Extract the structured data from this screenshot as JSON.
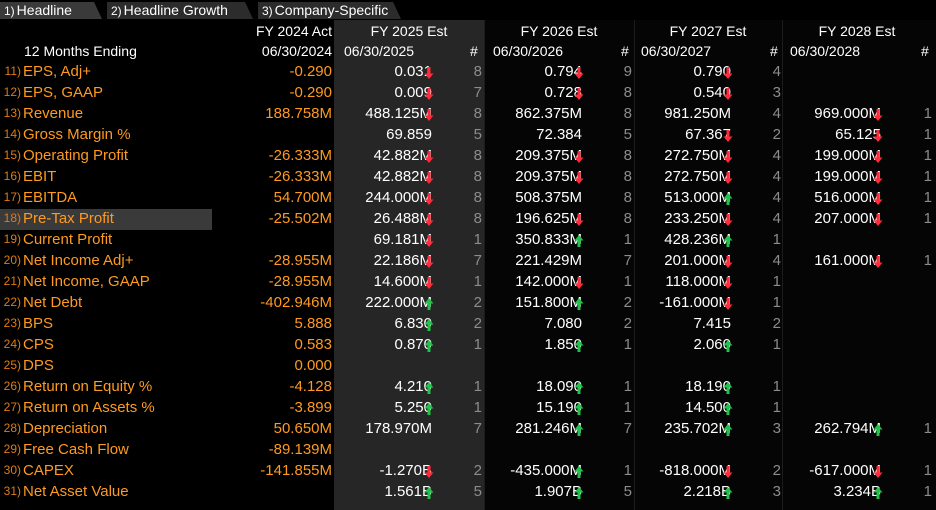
{
  "tabs": [
    {
      "num": "1)",
      "label": "Headline",
      "active": true
    },
    {
      "num": "2)",
      "label": "Headline Growth",
      "active": false
    },
    {
      "num": "3)",
      "label": "Company-Specific",
      "active": false
    }
  ],
  "header": {
    "period_label": "12 Months Ending",
    "count_symbol": "#",
    "columns": [
      {
        "title": "FY 2024 Act",
        "date": "06/30/2024"
      },
      {
        "title": "FY 2025 Est",
        "date": "06/30/2025"
      },
      {
        "title": "FY 2026 Est",
        "date": "06/30/2026"
      },
      {
        "title": "FY 2027 Est",
        "date": "06/30/2027"
      },
      {
        "title": "FY 2028 Est",
        "date": "06/30/2028"
      }
    ]
  },
  "colors": {
    "orange": "#ff9a1f",
    "up": "#22c24a",
    "down": "#ff2a3a",
    "count": "#8c8c8c"
  },
  "rows": [
    {
      "num": "11)",
      "label": "EPS, Adj+",
      "actual": "-0.290",
      "est": [
        {
          "v": "0.031",
          "d": "down",
          "n": "8"
        },
        {
          "v": "0.794",
          "d": "down",
          "n": "9"
        },
        {
          "v": "0.790",
          "d": "down",
          "n": "4"
        },
        {
          "v": "",
          "d": "",
          "n": ""
        }
      ]
    },
    {
      "num": "12)",
      "label": "EPS, GAAP",
      "actual": "-0.290",
      "est": [
        {
          "v": "0.009",
          "d": "down",
          "n": "7"
        },
        {
          "v": "0.728",
          "d": "down",
          "n": "8"
        },
        {
          "v": "0.540",
          "d": "down",
          "n": "3"
        },
        {
          "v": "",
          "d": "",
          "n": ""
        }
      ]
    },
    {
      "num": "13)",
      "label": "Revenue",
      "actual": "188.758M",
      "est": [
        {
          "v": "488.125M",
          "d": "down",
          "n": "8"
        },
        {
          "v": "862.375M",
          "d": "",
          "n": "8"
        },
        {
          "v": "981.250M",
          "d": "",
          "n": "4"
        },
        {
          "v": "969.000M",
          "d": "down",
          "n": "1"
        }
      ]
    },
    {
      "num": "14)",
      "label": "Gross Margin %",
      "actual": "",
      "est": [
        {
          "v": "69.859",
          "d": "",
          "n": "5"
        },
        {
          "v": "72.384",
          "d": "",
          "n": "5"
        },
        {
          "v": "67.367",
          "d": "down",
          "n": "2"
        },
        {
          "v": "65.125",
          "d": "down",
          "n": "1"
        }
      ]
    },
    {
      "num": "15)",
      "label": "Operating Profit",
      "actual": "-26.333M",
      "est": [
        {
          "v": "42.882M",
          "d": "down",
          "n": "8"
        },
        {
          "v": "209.375M",
          "d": "down",
          "n": "8"
        },
        {
          "v": "272.750M",
          "d": "down",
          "n": "4"
        },
        {
          "v": "199.000M",
          "d": "down",
          "n": "1"
        }
      ]
    },
    {
      "num": "16)",
      "label": "EBIT",
      "actual": "-26.333M",
      "est": [
        {
          "v": "42.882M",
          "d": "down",
          "n": "8"
        },
        {
          "v": "209.375M",
          "d": "down",
          "n": "8"
        },
        {
          "v": "272.750M",
          "d": "down",
          "n": "4"
        },
        {
          "v": "199.000M",
          "d": "down",
          "n": "1"
        }
      ]
    },
    {
      "num": "17)",
      "label": "EBITDA",
      "actual": "54.700M",
      "est": [
        {
          "v": "244.000M",
          "d": "down",
          "n": "8"
        },
        {
          "v": "508.375M",
          "d": "",
          "n": "8"
        },
        {
          "v": "513.000M",
          "d": "up",
          "n": "4"
        },
        {
          "v": "516.000M",
          "d": "down",
          "n": "1"
        }
      ]
    },
    {
      "num": "18)",
      "label": "Pre-Tax Profit",
      "actual": "-25.502M",
      "highlight": true,
      "est": [
        {
          "v": "26.488M",
          "d": "down",
          "n": "8"
        },
        {
          "v": "196.625M",
          "d": "down",
          "n": "8"
        },
        {
          "v": "233.250M",
          "d": "down",
          "n": "4"
        },
        {
          "v": "207.000M",
          "d": "down",
          "n": "1"
        }
      ]
    },
    {
      "num": "19)",
      "label": "Current Profit",
      "actual": "",
      "est": [
        {
          "v": "69.181M",
          "d": "down",
          "n": "1"
        },
        {
          "v": "350.833M",
          "d": "up",
          "n": "1"
        },
        {
          "v": "428.236M",
          "d": "up",
          "n": "1"
        },
        {
          "v": "",
          "d": "",
          "n": ""
        }
      ]
    },
    {
      "num": "20)",
      "label": "Net Income Adj+",
      "actual": "-28.955M",
      "est": [
        {
          "v": "22.186M",
          "d": "down",
          "n": "7"
        },
        {
          "v": "221.429M",
          "d": "",
          "n": "7"
        },
        {
          "v": "201.000M",
          "d": "down",
          "n": "4"
        },
        {
          "v": "161.000M",
          "d": "down",
          "n": "1"
        }
      ]
    },
    {
      "num": "21)",
      "label": "Net Income, GAAP",
      "actual": "-28.955M",
      "est": [
        {
          "v": "14.600M",
          "d": "down",
          "n": "1"
        },
        {
          "v": "142.000M",
          "d": "down",
          "n": "1"
        },
        {
          "v": "118.000M",
          "d": "down",
          "n": "1"
        },
        {
          "v": "",
          "d": "",
          "n": ""
        }
      ]
    },
    {
      "num": "22)",
      "label": "Net Debt",
      "actual": "-402.946M",
      "est": [
        {
          "v": "222.000M",
          "d": "up",
          "n": "2"
        },
        {
          "v": "151.800M",
          "d": "up",
          "n": "2"
        },
        {
          "v": "-161.000M",
          "d": "down",
          "n": "1"
        },
        {
          "v": "",
          "d": "",
          "n": ""
        }
      ]
    },
    {
      "num": "23)",
      "label": "BPS",
      "actual": "5.888",
      "est": [
        {
          "v": "6.830",
          "d": "up",
          "n": "2"
        },
        {
          "v": "7.080",
          "d": "",
          "n": "2"
        },
        {
          "v": "7.415",
          "d": "",
          "n": "2"
        },
        {
          "v": "",
          "d": "",
          "n": ""
        }
      ]
    },
    {
      "num": "24)",
      "label": "CPS",
      "actual": "0.583",
      "est": [
        {
          "v": "0.870",
          "d": "up",
          "n": "1"
        },
        {
          "v": "1.850",
          "d": "up",
          "n": "1"
        },
        {
          "v": "2.060",
          "d": "up",
          "n": "1"
        },
        {
          "v": "",
          "d": "",
          "n": ""
        }
      ]
    },
    {
      "num": "25)",
      "label": "DPS",
      "actual": "0.000",
      "est": [
        {
          "v": "",
          "d": "",
          "n": ""
        },
        {
          "v": "",
          "d": "",
          "n": ""
        },
        {
          "v": "",
          "d": "",
          "n": ""
        },
        {
          "v": "",
          "d": "",
          "n": ""
        }
      ]
    },
    {
      "num": "26)",
      "label": "Return on Equity %",
      "actual": "-4.128",
      "est": [
        {
          "v": "4.210",
          "d": "up",
          "n": "1"
        },
        {
          "v": "18.090",
          "d": "up",
          "n": "1"
        },
        {
          "v": "18.190",
          "d": "up",
          "n": "1"
        },
        {
          "v": "",
          "d": "",
          "n": ""
        }
      ]
    },
    {
      "num": "27)",
      "label": "Return on Assets %",
      "actual": "-3.899",
      "est": [
        {
          "v": "5.250",
          "d": "up",
          "n": "1"
        },
        {
          "v": "15.190",
          "d": "up",
          "n": "1"
        },
        {
          "v": "14.500",
          "d": "up",
          "n": "1"
        },
        {
          "v": "",
          "d": "",
          "n": ""
        }
      ]
    },
    {
      "num": "28)",
      "label": "Depreciation",
      "actual": "50.650M",
      "est": [
        {
          "v": "178.970M",
          "d": "",
          "n": "7"
        },
        {
          "v": "281.246M",
          "d": "up",
          "n": "7"
        },
        {
          "v": "235.702M",
          "d": "up",
          "n": "3"
        },
        {
          "v": "262.794M",
          "d": "up",
          "n": "1"
        }
      ]
    },
    {
      "num": "29)",
      "label": "Free Cash Flow",
      "actual": "-89.139M",
      "est": [
        {
          "v": "",
          "d": "",
          "n": ""
        },
        {
          "v": "",
          "d": "",
          "n": ""
        },
        {
          "v": "",
          "d": "",
          "n": ""
        },
        {
          "v": "",
          "d": "",
          "n": ""
        }
      ]
    },
    {
      "num": "30)",
      "label": "CAPEX",
      "actual": "-141.855M",
      "est": [
        {
          "v": "-1.270B",
          "d": "down",
          "n": "2"
        },
        {
          "v": "-435.000M",
          "d": "up",
          "n": "1"
        },
        {
          "v": "-818.000M",
          "d": "down",
          "n": "2"
        },
        {
          "v": "-617.000M",
          "d": "down",
          "n": "1"
        }
      ]
    },
    {
      "num": "31)",
      "label": "Net Asset Value",
      "actual": "",
      "est": [
        {
          "v": "1.561B",
          "d": "up",
          "n": "5"
        },
        {
          "v": "1.907B",
          "d": "up",
          "n": "5"
        },
        {
          "v": "2.218B",
          "d": "up",
          "n": "3"
        },
        {
          "v": "3.234B",
          "d": "up",
          "n": "1"
        }
      ]
    }
  ]
}
